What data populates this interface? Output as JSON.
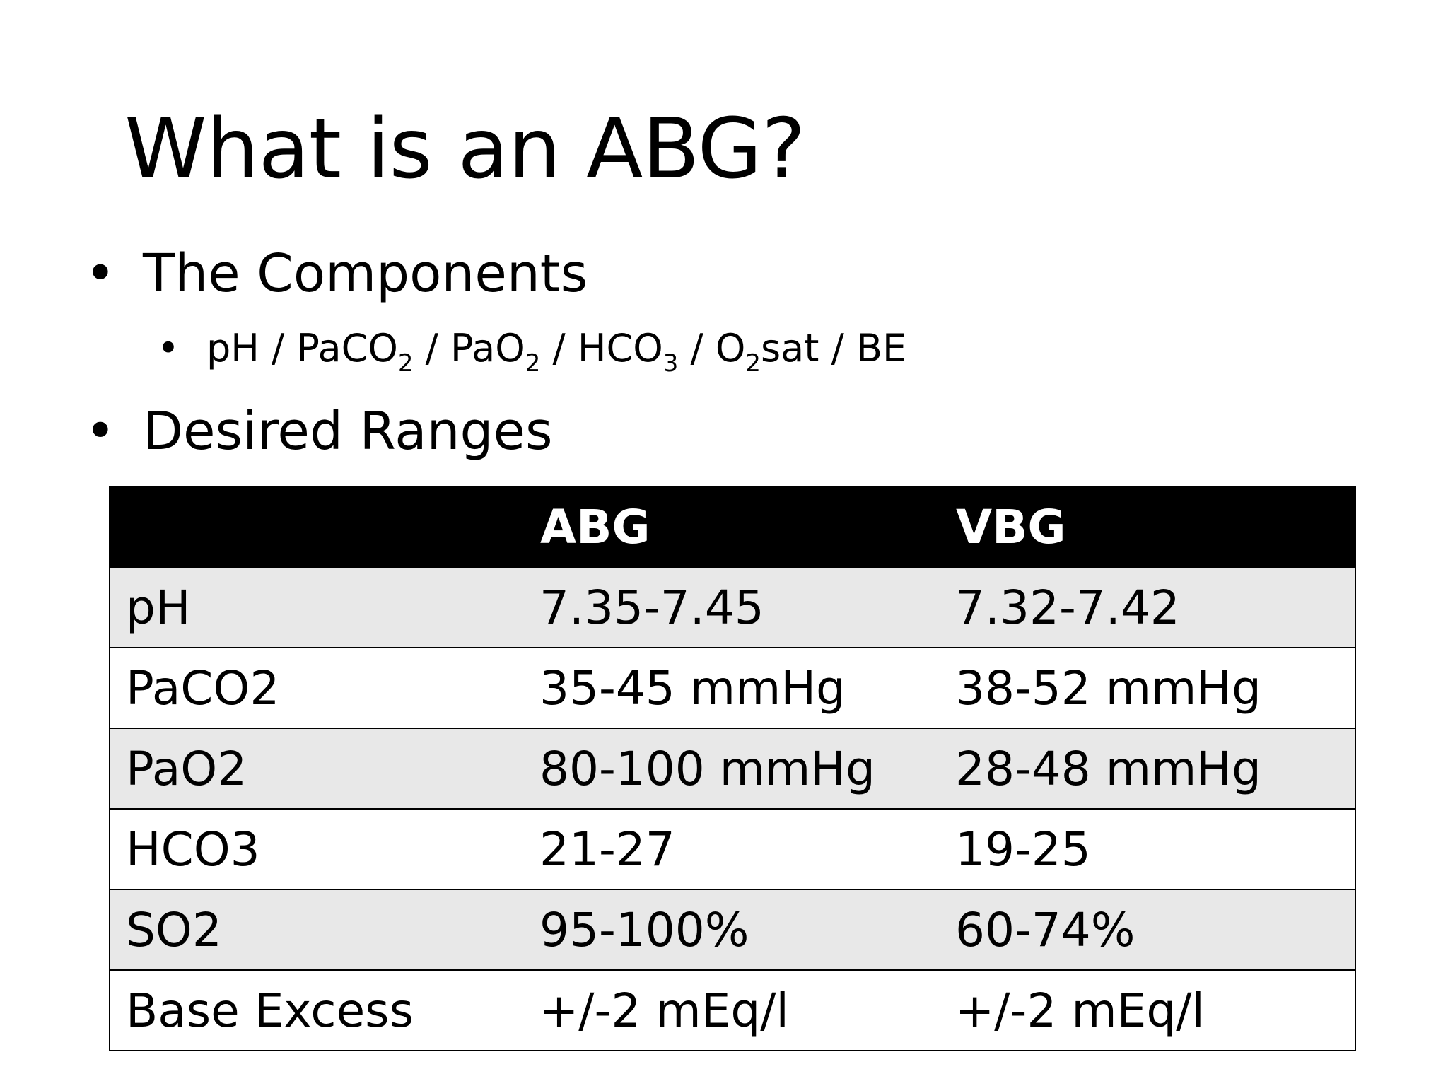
{
  "slide": {
    "title": "What is an ABG?",
    "bullets": [
      {
        "marker": "•",
        "text": "The Components"
      },
      {
        "marker": "•",
        "text": "Desired Ranges"
      }
    ],
    "sub_bullet": {
      "marker": "•",
      "parts": [
        "pH / PaCO",
        "2",
        " / PaO",
        "2",
        " / HCO",
        "3",
        " / O",
        "2",
        "sat / BE"
      ]
    }
  },
  "table": {
    "headers": [
      "",
      "ABG",
      "VBG"
    ],
    "rows": [
      [
        "pH",
        "7.35-7.45",
        "7.32-7.42"
      ],
      [
        "PaCO2",
        "35-45 mmHg",
        "38-52 mmHg"
      ],
      [
        "PaO2",
        "80-100 mmHg",
        "28-48 mmHg"
      ],
      [
        "HCO3",
        "21-27",
        "19-25"
      ],
      [
        "SO2",
        "95-100%",
        "60-74%"
      ],
      [
        "Base Excess",
        "+/-2 mEq/l",
        "+/-2 mEq/l"
      ]
    ]
  },
  "colors": {
    "header_bg": "#000000",
    "header_text": "#ffffff",
    "row_shade": "#e8e8e8",
    "row_plain": "#ffffff"
  }
}
